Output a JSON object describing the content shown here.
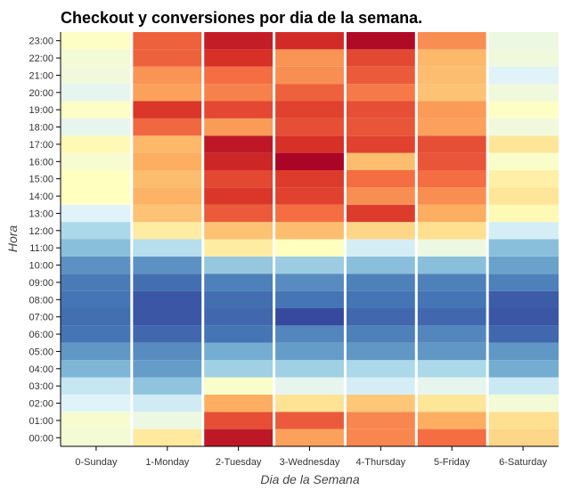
{
  "chart_data": {
    "type": "heatmap",
    "title": "Checkout y conversiones por dia de la semana.",
    "xlabel": "Dia de la Semana",
    "ylabel": "Hora",
    "x_categories": [
      "0-Sunday",
      "1-Monday",
      "2-Tuesday",
      "3-Wednesday",
      "4-Thursday",
      "5-Friday",
      "6-Saturday"
    ],
    "y_categories": [
      "00:00",
      "01:00",
      "02:00",
      "03:00",
      "04:00",
      "05:00",
      "06:00",
      "07:00",
      "08:00",
      "09:00",
      "10:00",
      "11:00",
      "12:00",
      "13:00",
      "14:00",
      "15:00",
      "16:00",
      "17:00",
      "18:00",
      "19:00",
      "20:00",
      "21:00",
      "22:00",
      "23:00"
    ],
    "values": [
      [
        0.46,
        0.57,
        0.95,
        0.72,
        0.76,
        0.8,
        0.62
      ],
      [
        0.47,
        0.44,
        0.85,
        0.83,
        0.76,
        0.7,
        0.6
      ],
      [
        0.4,
        0.37,
        0.7,
        0.59,
        0.65,
        0.58,
        0.46
      ],
      [
        0.35,
        0.25,
        0.48,
        0.42,
        0.38,
        0.42,
        0.36
      ],
      [
        0.22,
        0.17,
        0.28,
        0.28,
        0.3,
        0.3,
        0.2
      ],
      [
        0.16,
        0.14,
        0.2,
        0.17,
        0.16,
        0.16,
        0.16
      ],
      [
        0.1,
        0.08,
        0.1,
        0.13,
        0.12,
        0.13,
        0.08
      ],
      [
        0.09,
        0.05,
        0.08,
        0.03,
        0.08,
        0.08,
        0.05
      ],
      [
        0.1,
        0.05,
        0.09,
        0.1,
        0.1,
        0.1,
        0.06
      ],
      [
        0.11,
        0.09,
        0.12,
        0.14,
        0.12,
        0.12,
        0.12
      ],
      [
        0.15,
        0.15,
        0.26,
        0.27,
        0.24,
        0.24,
        0.18
      ],
      [
        0.24,
        0.32,
        0.56,
        0.5,
        0.38,
        0.44,
        0.24
      ],
      [
        0.3,
        0.56,
        0.66,
        0.67,
        0.62,
        0.6,
        0.38
      ],
      [
        0.4,
        0.66,
        0.83,
        0.8,
        0.88,
        0.7,
        0.52
      ],
      [
        0.5,
        0.69,
        0.89,
        0.87,
        0.75,
        0.75,
        0.58
      ],
      [
        0.5,
        0.67,
        0.86,
        0.88,
        0.8,
        0.8,
        0.55
      ],
      [
        0.47,
        0.7,
        0.92,
        0.99,
        0.67,
        0.84,
        0.48
      ],
      [
        0.52,
        0.68,
        0.95,
        0.9,
        0.87,
        0.85,
        0.58
      ],
      [
        0.42,
        0.81,
        0.73,
        0.85,
        0.84,
        0.72,
        0.45
      ],
      [
        0.49,
        0.89,
        0.86,
        0.87,
        0.85,
        0.73,
        0.49
      ],
      [
        0.42,
        0.72,
        0.77,
        0.82,
        0.78,
        0.66,
        0.45
      ],
      [
        0.45,
        0.74,
        0.8,
        0.75,
        0.83,
        0.67,
        0.4
      ],
      [
        0.46,
        0.82,
        0.9,
        0.74,
        0.86,
        0.68,
        0.45
      ],
      [
        0.49,
        0.82,
        0.94,
        0.91,
        0.98,
        0.75,
        0.44
      ]
    ],
    "colormap": "RdYlBu_r",
    "grid": false,
    "legend": "none"
  }
}
